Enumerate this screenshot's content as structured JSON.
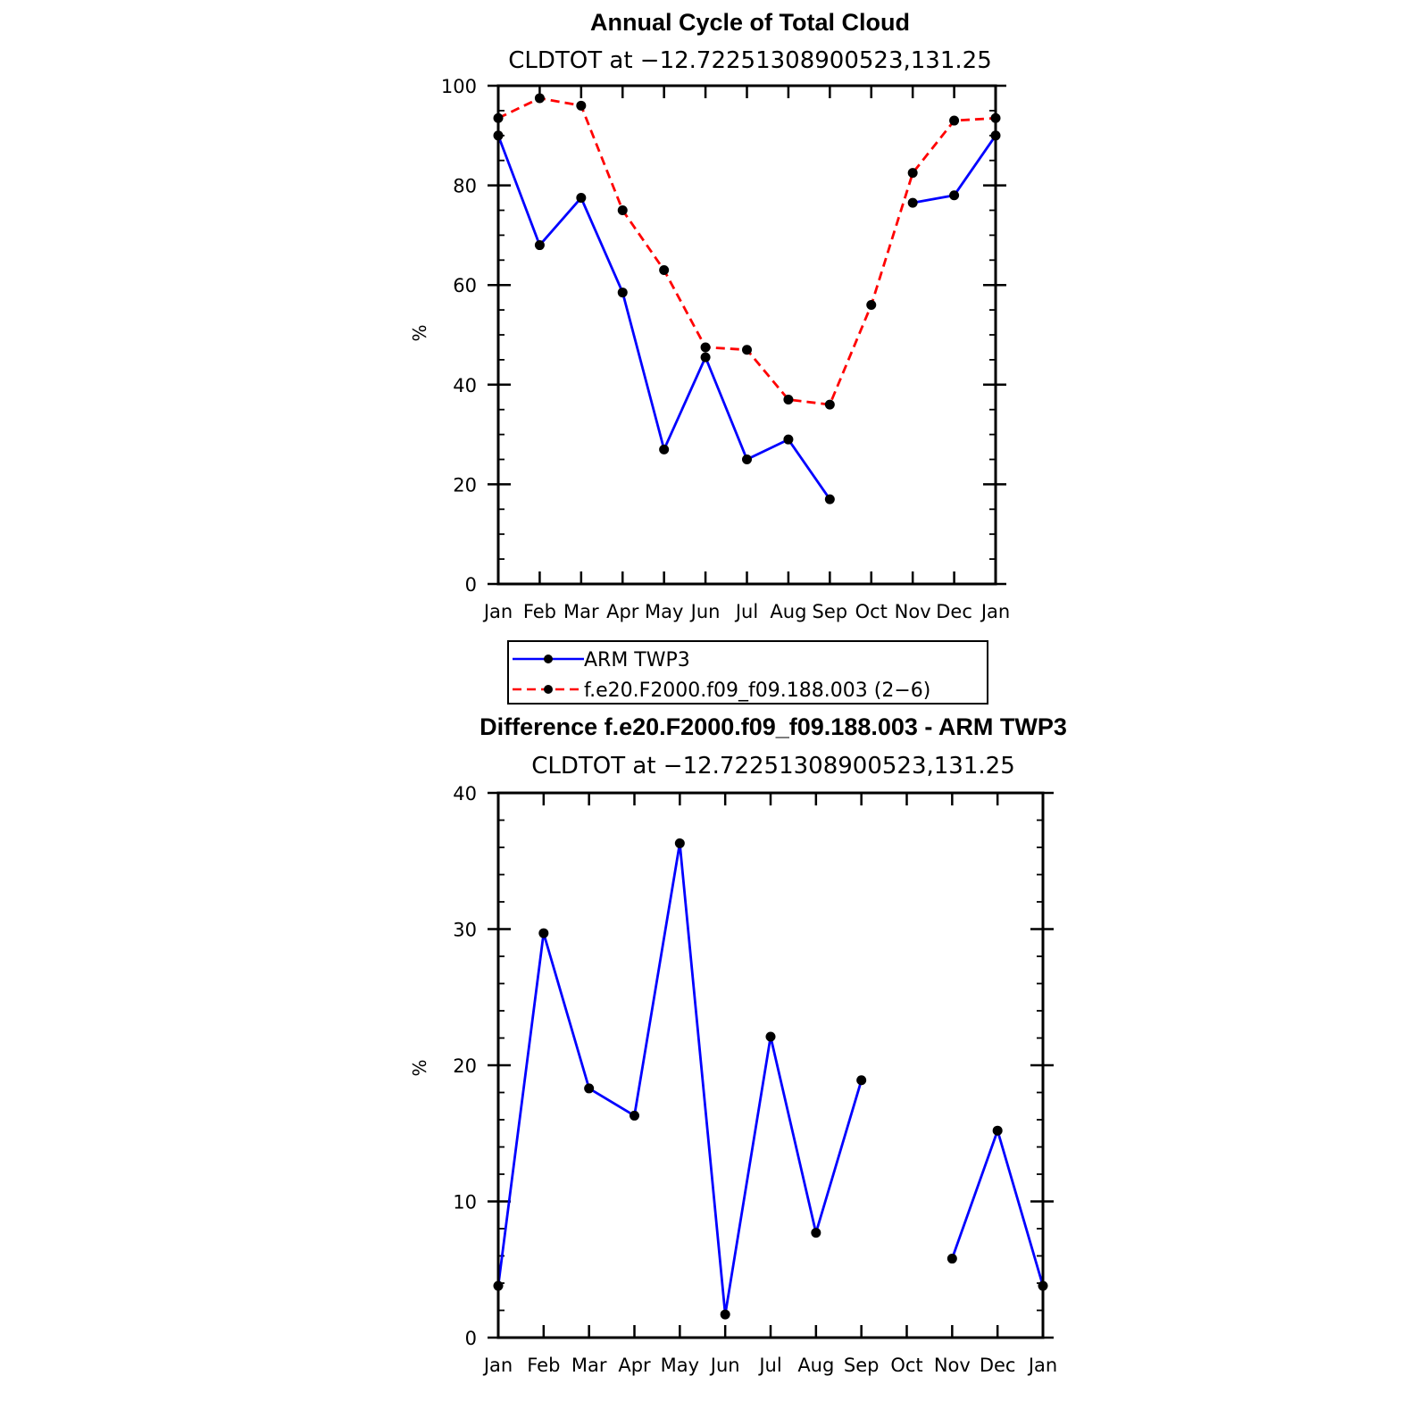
{
  "chart_data": [
    {
      "type": "line",
      "title": "Annual Cycle of Total Cloud",
      "subtitle": "CLDTOT at −12.72251308900523,131.25",
      "ylabel": "%",
      "ylim": [
        0,
        100
      ],
      "yticks": [
        "0",
        "20",
        "40",
        "60",
        "80",
        "100"
      ],
      "categories": [
        "Jan",
        "Feb",
        "Mar",
        "Apr",
        "May",
        "Jun",
        "Jul",
        "Aug",
        "Sep",
        "Oct",
        "Nov",
        "Dec",
        "Jan"
      ],
      "series": [
        {
          "name": "ARM TWP3",
          "color": "#0000ff",
          "dash": "solid",
          "values": [
            90,
            68,
            77.5,
            58.5,
            27,
            45.5,
            25,
            29,
            17,
            null,
            76.5,
            78,
            90
          ]
        },
        {
          "name": "f.e20.F2000.f09_f09.188.003 (2−6)",
          "color": "#ff0000",
          "dash": "dashed",
          "values": [
            93.5,
            97.5,
            96,
            75,
            63,
            47.5,
            47,
            37,
            36,
            56,
            82.5,
            93,
            93.5
          ]
        }
      ],
      "legend": [
        "ARM TWP3",
        "f.e20.F2000.f09_f09.188.003 (2−6)"
      ]
    },
    {
      "type": "line",
      "title": "Difference f.e20.F2000.f09_f09.188.003 - ARM TWP3",
      "subtitle": "CLDTOT at −12.72251308900523,131.25",
      "ylabel": "%",
      "ylim": [
        0,
        40
      ],
      "yticks": [
        "0",
        "10",
        "20",
        "30",
        "40"
      ],
      "categories": [
        "Jan",
        "Feb",
        "Mar",
        "Apr",
        "May",
        "Jun",
        "Jul",
        "Aug",
        "Sep",
        "Oct",
        "Nov",
        "Dec",
        "Jan"
      ],
      "series": [
        {
          "name": "Difference",
          "color": "#0000ff",
          "dash": "solid",
          "values": [
            3.8,
            29.7,
            18.3,
            16.3,
            36.3,
            1.7,
            22.1,
            7.7,
            18.9,
            null,
            5.8,
            15.2,
            3.8
          ]
        }
      ]
    }
  ]
}
